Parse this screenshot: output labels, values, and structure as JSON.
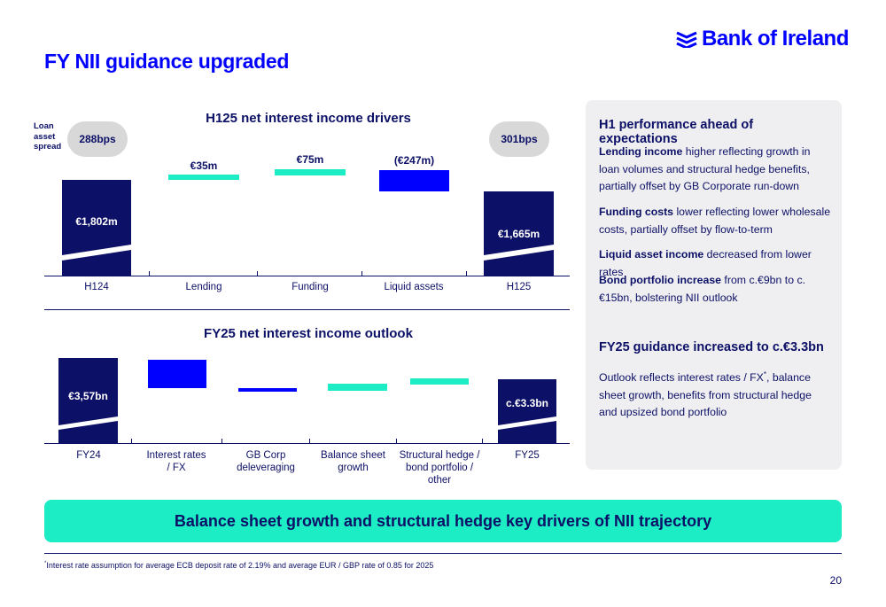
{
  "brand": {
    "name": "Bank of Ireland",
    "accent": "#0000ff",
    "navy": "#0c1066",
    "mint": "#1cedc4"
  },
  "title": "FY NII guidance upgraded",
  "chart_data": [
    {
      "type": "bar",
      "title": "H125 net interest income drivers",
      "categories": [
        "H124",
        "Lending",
        "Funding",
        "Liquid assets",
        "H125"
      ],
      "values": [
        1802,
        35,
        75,
        -247,
        1665
      ],
      "value_labels": [
        "€1,802m",
        "€35m",
        "€75m",
        "(€247m)",
        "€1,665m"
      ],
      "unit": "€m",
      "loan_asset_spread": {
        "label": "Loan asset spread",
        "start": "288bps",
        "end": "301bps"
      }
    },
    {
      "type": "bar",
      "title": "FY25 net interest income outlook",
      "categories": [
        "FY24",
        "Interest rates / FX",
        "GB Corp deleveraging",
        "Balance sheet growth",
        "Structural hedge / bond portfolio / other",
        "FY25"
      ],
      "values": [
        3.57,
        null,
        null,
        null,
        null,
        3.3
      ],
      "value_labels": [
        "€3,57bn",
        "",
        "",
        "",
        "",
        "c.€3.3bn"
      ],
      "unit": "€bn"
    }
  ],
  "chart1": {
    "title": "H125 net interest income drivers",
    "spread_label": "Loan asset spread",
    "spread_start": "288bps",
    "spread_end": "301bps",
    "labels": {
      "h124": "€1,802m",
      "lending": "€35m",
      "funding": "€75m",
      "liquid": "(€247m)",
      "h125": "€1,665m"
    },
    "cats": {
      "h124": "H124",
      "lending": "Lending",
      "funding": "Funding",
      "liquid": "Liquid assets",
      "h125": "H125"
    }
  },
  "chart2": {
    "title": "FY25 net interest income outlook",
    "labels": {
      "fy24": "€3,57bn",
      "fy25": "c.€3.3bn"
    },
    "cats": {
      "fy24": "FY24",
      "rates_1": "Interest rates",
      "rates_2": "/ FX",
      "gbcorp_1": "GB Corp",
      "gbcorp_2": "deleveraging",
      "bsg_1": "Balance sheet",
      "bsg_2": "growth",
      "hedge_1": "Structural hedge /",
      "hedge_2": "bond portfolio /",
      "hedge_3": "other",
      "fy25": "FY25"
    }
  },
  "panel": {
    "heading1": "H1 performance ahead of expectations",
    "items": [
      {
        "bold": "Lending income",
        "text": " higher reflecting growth in loan volumes and structural hedge benefits, partially offset by GB Corporate run-down"
      },
      {
        "bold": "Funding costs",
        "text": " lower reflecting lower wholesale costs, partially offset by flow-to-term"
      },
      {
        "bold": "Liquid asset income",
        "text": " decreased from lower rates"
      },
      {
        "bold": "Bond portfolio increase",
        "text": " from c.€9bn to c.€15bn, bolstering NII outlook"
      }
    ],
    "heading2": "FY25 guidance increased to c.€3.3bn",
    "outlook_1": "Outlook reflects interest rates / FX",
    "outlook_sup": "*",
    "outlook_2": ", balance sheet growth, benefits from structural hedge and upsized bond portfolio"
  },
  "banner": "Balance sheet growth and structural hedge key drivers of NII trajectory",
  "footnote_marker": "*",
  "footnote": "Interest rate assumption for average ECB deposit rate of 2.19% and average EUR / GBP rate of 0.85 for 2025",
  "page_number": "20"
}
